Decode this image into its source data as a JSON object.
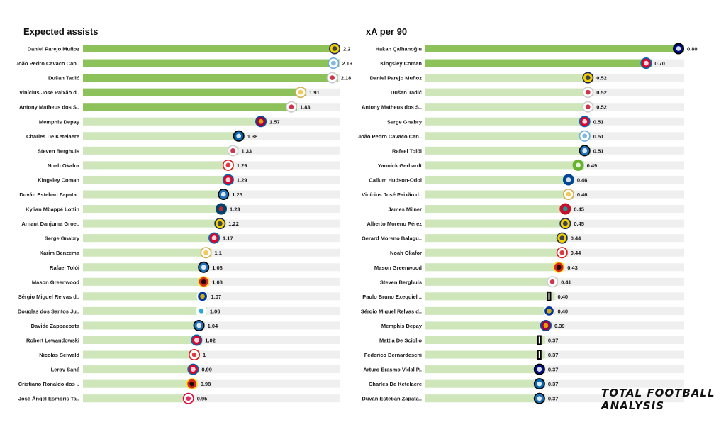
{
  "watermark": "TOTAL FOOTBALL ANALYSIS",
  "colors": {
    "highlight": "#8dc25a",
    "base": "#cfe6bb",
    "track": "#efefef",
    "text": "#1b1b1b"
  },
  "chart_data": [
    {
      "type": "bar",
      "orientation": "horizontal",
      "title": "Expected assists",
      "xlim": [
        0,
        2.2
      ],
      "decimals": 0,
      "highlight_top": 5,
      "categories": [
        "Daniel Parejo Muñoz",
        "João Pedro Cavaco Can..",
        "Dušan Tadić",
        "Vinícius José Paixão d..",
        "Antony Matheus dos S..",
        "Memphis Depay",
        "Charles De Ketelaere",
        "Steven Berghuis",
        "Noah Okafor",
        "Kingsley Coman",
        "Duván Esteban Zapata..",
        "Kylian Mbappé Lottin",
        "Arnaut Danjuma Groe..",
        "Serge  Gnabry",
        "Karim Benzema",
        "Rafael Tolói",
        "Mason Greenwood",
        "Sérgio Miguel Relvas d..",
        "Douglas dos Santos Ju..",
        "Davide Zappacosta",
        "Robert Lewandowski",
        "Nicolas Seiwald",
        "Leroy Sané",
        "Cristiano Ronaldo dos ..",
        "José Ángel Esmorís Ta.."
      ],
      "values": [
        2.2,
        2.19,
        2.18,
        1.91,
        1.83,
        1.57,
        1.38,
        1.33,
        1.29,
        1.29,
        1.25,
        1.23,
        1.22,
        1.17,
        1.1,
        1.08,
        1.08,
        1.07,
        1.06,
        1.04,
        1.02,
        1,
        0.99,
        0.98,
        0.95
      ],
      "labels": [
        "2.2",
        "2.19",
        "2.18",
        "1.91",
        "1.83",
        "1.57",
        "1.38",
        "1.33",
        "1.29",
        "1.29",
        "1.25",
        "1.23",
        "1.22",
        "1.17",
        "1.1",
        "1.08",
        "1.08",
        "1.07",
        "1.06",
        "1.04",
        "1.02",
        "1",
        "0.99",
        "0.98",
        "0.95"
      ],
      "logos": [
        "villarreal",
        "man-city",
        "ajax",
        "real-madrid",
        "ajax",
        "barcelona",
        "club-brugge",
        "ajax",
        "rb-salzburg",
        "bayern",
        "atalanta",
        "psg",
        "villarreal",
        "bayern",
        "real-madrid",
        "atalanta",
        "man-united",
        "porto",
        "zenit",
        "atalanta",
        "bayern",
        "rb-salzburg",
        "bayern",
        "man-united",
        "rb-leipzig"
      ]
    },
    {
      "type": "bar",
      "orientation": "horizontal",
      "title": "xA per 90",
      "xlim": [
        0,
        0.8
      ],
      "highlight_top": 2,
      "categories": [
        "Hakan Çalhanoğlu",
        "Kingsley Coman",
        "Daniel Parejo Muñoz",
        "Dušan Tadić",
        "Antony Matheus dos S..",
        "Serge  Gnabry",
        "João Pedro Cavaco Can..",
        "Rafael Tolói",
        "Yannick Gerhardt",
        "Callum Hudson-Odoi",
        "Vinícius José Paixão d..",
        "James Milner",
        "Alberto Moreno Pérez",
        "Gerard Moreno Balagu..",
        "Noah Okafor",
        "Mason Greenwood",
        "Steven Berghuis",
        "Paulo Bruno Exequiel ..",
        "Sérgio Miguel Relvas d..",
        "Memphis Depay",
        "Mattia De Sciglio",
        "Federico Bernardeschi",
        "Arturo Erasmo Vidal P..",
        "Charles De Ketelaere",
        "Duván Esteban Zapata.."
      ],
      "values": [
        0.8,
        0.7,
        0.52,
        0.52,
        0.52,
        0.51,
        0.51,
        0.51,
        0.49,
        0.46,
        0.46,
        0.45,
        0.45,
        0.44,
        0.44,
        0.43,
        0.41,
        0.4,
        0.4,
        0.39,
        0.37,
        0.37,
        0.37,
        0.37,
        0.37
      ],
      "labels": [
        "0.80",
        "0.70",
        "0.52",
        "0.52",
        "0.52",
        "0.51",
        "0.51",
        "0.51",
        "0.49",
        "0.46",
        "0.46",
        "0.45",
        "0.45",
        "0.44",
        "0.44",
        "0.43",
        "0.41",
        "0.40",
        "0.40",
        "0.39",
        "0.37",
        "0.37",
        "0.37",
        "0.37",
        "0.37"
      ],
      "logos": [
        "inter",
        "bayern",
        "villarreal",
        "ajax",
        "ajax",
        "bayern",
        "man-city",
        "atalanta",
        "wolfsburg",
        "chelsea",
        "real-madrid",
        "liverpool",
        "villarreal",
        "villarreal",
        "rb-salzburg",
        "man-united",
        "ajax",
        "juventus",
        "porto",
        "barcelona",
        "juventus",
        "juventus",
        "inter",
        "club-brugge",
        "atalanta"
      ]
    }
  ]
}
